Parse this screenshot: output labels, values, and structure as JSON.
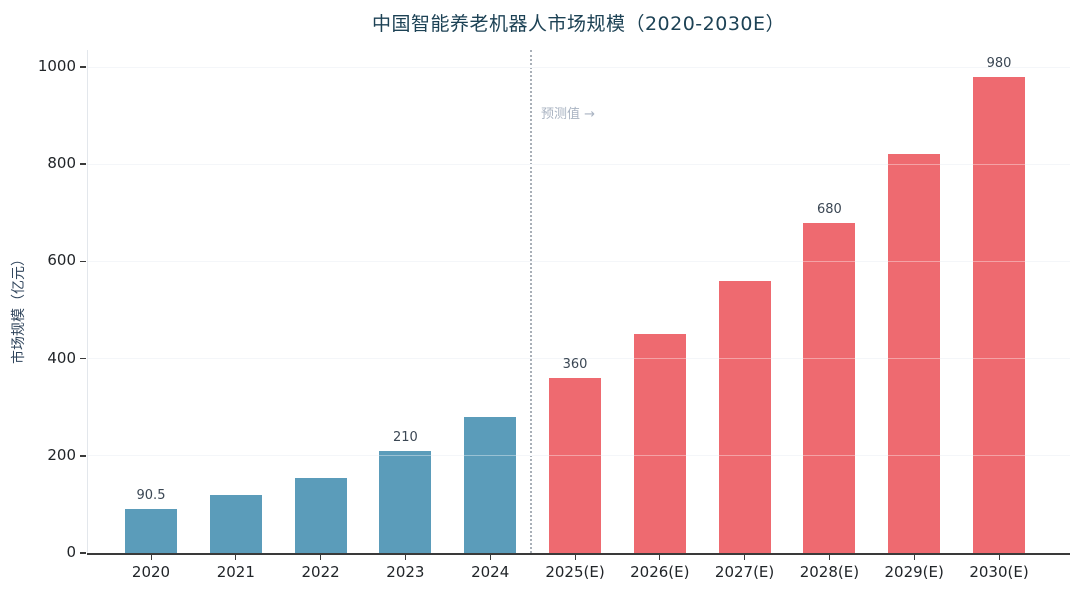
{
  "chart_data": {
    "type": "bar",
    "title": "中国智能养老机器人市场规模（2020-2030E）",
    "ylabel": "市场规模（亿元）",
    "xlabel": "",
    "ylim": [
      0,
      1000
    ],
    "ytick_step": 200,
    "grid": true,
    "legend_position": "none",
    "categories": [
      "2020",
      "2021",
      "2022",
      "2023",
      "2024",
      "2025(E)",
      "2026(E)",
      "2027(E)",
      "2028(E)",
      "2029(E)",
      "2030(E)"
    ],
    "values": [
      90.5,
      120,
      155,
      210,
      280,
      360,
      450,
      560,
      680,
      820,
      980
    ],
    "bar_labels": [
      "90.5",
      null,
      null,
      "210",
      null,
      "360",
      null,
      null,
      "680",
      null,
      "980"
    ],
    "forecast_start_index": 5,
    "colors": {
      "actual_bar": "#5b9cba",
      "forecast_bar": "#ee6a70",
      "divider": "#a9b0b8",
      "annotation_text": "#a9b3c2",
      "title_text": "#1d4255",
      "axis_line": "#3a3a3a"
    },
    "annotation": {
      "text": "预测值 →"
    }
  }
}
